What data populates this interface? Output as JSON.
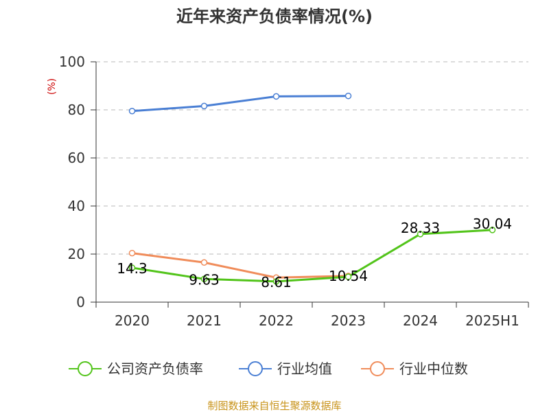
{
  "chart_data": {
    "type": "line",
    "title": "近年来资产负债率情况(%)",
    "ylabel": "(%)",
    "categories": [
      "2020",
      "2021",
      "2022",
      "2023",
      "2024",
      "2025H1"
    ],
    "ylim": [
      0,
      100
    ],
    "yticks": [
      0,
      20,
      40,
      60,
      80,
      100
    ],
    "grid": true,
    "legend_position": "bottom",
    "series": [
      {
        "name": "公司资产负债率",
        "color": "#52c41a",
        "values": [
          14.3,
          9.63,
          8.61,
          10.54,
          28.33,
          30.04
        ],
        "labels": [
          "14.3",
          "9.63",
          "8.61",
          "10.54",
          "28.33",
          "30.04"
        ]
      },
      {
        "name": "行业均值",
        "color": "#4a7fd4",
        "values": [
          79.5,
          81.6,
          85.6,
          85.8,
          null,
          null
        ]
      },
      {
        "name": "行业中位数",
        "color": "#f08c5a",
        "values": [
          20.4,
          16.5,
          10.2,
          10.9,
          null,
          null
        ]
      }
    ],
    "source": "制图数据来自恒生聚源数据库"
  }
}
